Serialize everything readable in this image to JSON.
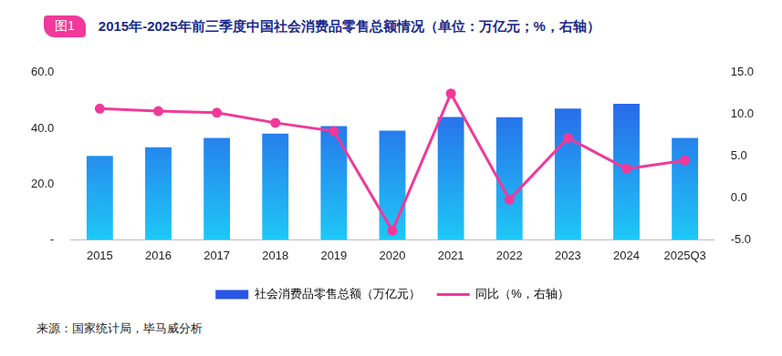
{
  "chart_data": {
    "type": "bar",
    "figure_label": "图1",
    "title": "2015年-2025年前三季度中国社会消费品零售总额情况（单位：万亿元；%，右轴）",
    "source": "来源：国家统计局，毕马威分析",
    "categories": [
      "2015",
      "2016",
      "2017",
      "2018",
      "2019",
      "2020",
      "2021",
      "2022",
      "2023",
      "2024",
      "2025Q3"
    ],
    "series": [
      {
        "name": "社会消费品零售总额（万亿元）",
        "type": "bar",
        "color": "#2a55e5",
        "values": [
          30.1,
          33.2,
          36.6,
          38.1,
          40.8,
          39.2,
          44.1,
          44.0,
          47.1,
          48.8,
          36.6
        ]
      },
      {
        "name": "同比（%，右轴）",
        "type": "line",
        "color": "#f0399a",
        "axis": "y2",
        "marker": "circle",
        "values": [
          10.7,
          10.4,
          10.2,
          9.0,
          8.0,
          -3.9,
          12.5,
          -0.2,
          7.2,
          3.5,
          4.5
        ]
      }
    ],
    "ylim": [
      0,
      60
    ],
    "yticks": [
      {
        "value": 0,
        "label": "-"
      },
      {
        "value": 20,
        "label": "20.0"
      },
      {
        "value": 40,
        "label": "40.0"
      },
      {
        "value": 60,
        "label": "60.0"
      }
    ],
    "y2lim": [
      -5,
      15
    ],
    "y2ticks": [
      {
        "value": -5,
        "label": "-5.0"
      },
      {
        "value": 0,
        "label": "0.0"
      },
      {
        "value": 5,
        "label": "5.0"
      },
      {
        "value": 10,
        "label": "10.0"
      },
      {
        "value": 15,
        "label": "15.0"
      }
    ],
    "grid": false,
    "legend": "bottom"
  }
}
